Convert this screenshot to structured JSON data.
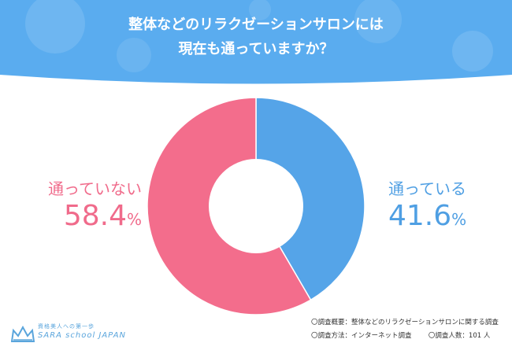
{
  "header": {
    "title_line1": "整体などのリラクゼーションサロンには",
    "title_line2": "現在も通っていますか？",
    "bg_color": "#5aacef"
  },
  "chart_data": {
    "type": "pie",
    "donut": true,
    "categories": [
      "通っている",
      "通っていない"
    ],
    "values": [
      41.6,
      58.4
    ],
    "unit": "%",
    "colors": [
      "#55a4e8",
      "#f36d8c"
    ],
    "labels": [
      {
        "name": "通っていない",
        "value": "58.4",
        "unit": "%"
      },
      {
        "name": "通っている",
        "value": "41.6",
        "unit": "%"
      }
    ]
  },
  "logo": {
    "tagline": "資格美人への第一歩",
    "name": "SARA school JAPAN",
    "icon": "crown-icon"
  },
  "notes": {
    "line1": "〇調査概要：整体などのリラクゼーションサロンに関する調査",
    "line2a": "〇調査方法：インターネット調査",
    "line2b": "〇調査人数：101 人"
  }
}
